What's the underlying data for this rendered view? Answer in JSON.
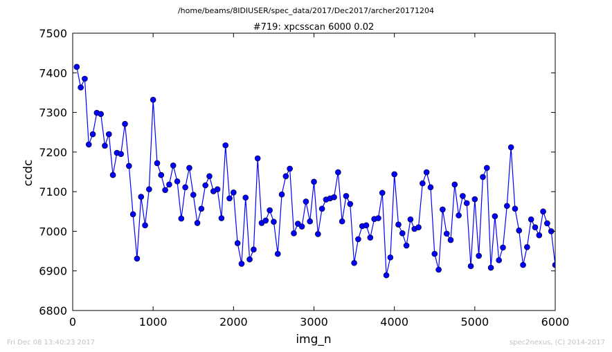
{
  "chart_data": {
    "type": "line",
    "suptitle": "/home/beams/8IDIUSER/spec_data/2017/Dec2017/archer20171204",
    "title": "#719: xpcsscan 6000 0.02",
    "xlabel": "img_n",
    "ylabel": "ccdc",
    "xlim": [
      0,
      6000
    ],
    "ylim": [
      6800,
      7500
    ],
    "xticks": [
      0,
      1000,
      2000,
      3000,
      4000,
      5000,
      6000
    ],
    "yticks": [
      6800,
      6900,
      7000,
      7100,
      7200,
      7300,
      7400,
      7500
    ],
    "grid": false,
    "line_color": "#0000ff",
    "marker": "circle",
    "series": [
      {
        "x": [
          50,
          100,
          150,
          200,
          250,
          300,
          350,
          400,
          450,
          500,
          550,
          600,
          650,
          700,
          750,
          800,
          850,
          900,
          950,
          1000,
          1050,
          1100,
          1150,
          1200,
          1250,
          1300,
          1350,
          1400,
          1450,
          1500,
          1550,
          1600,
          1650,
          1700,
          1750,
          1800,
          1850,
          1900,
          1950,
          2000,
          2050,
          2100,
          2150,
          2200,
          2250,
          2300,
          2350,
          2400,
          2450,
          2500,
          2550,
          2600,
          2650,
          2700,
          2750,
          2800,
          2850,
          2900,
          2950,
          3000,
          3050,
          3100,
          3150,
          3200,
          3250,
          3300,
          3350,
          3400,
          3450,
          3500,
          3550,
          3600,
          3650,
          3700,
          3750,
          3800,
          3850,
          3900,
          3950,
          4000,
          4050,
          4100,
          4150,
          4200,
          4250,
          4300,
          4350,
          4400,
          4450,
          4500,
          4550,
          4600,
          4650,
          4700,
          4750,
          4800,
          4850,
          4900,
          4950,
          5000,
          5050,
          5100,
          5150,
          5200,
          5250,
          5300,
          5350,
          5400,
          5450,
          5500,
          5550,
          5600,
          5650,
          5700,
          5750,
          5800,
          5850,
          5900,
          5950,
          6000
        ],
        "y": [
          7415,
          7363,
          7385,
          7219,
          7245,
          7299,
          7296,
          7216,
          7245,
          7142,
          7198,
          7195,
          7271,
          7165,
          7043,
          6931,
          7087,
          7015,
          7106,
          7332,
          7172,
          7142,
          7104,
          7118,
          7166,
          7126,
          7032,
          7111,
          7160,
          7092,
          7021,
          7057,
          7116,
          7139,
          7101,
          7106,
          7033,
          7217,
          7083,
          7098,
          6970,
          6918,
          7085,
          6929,
          6954,
          7184,
          7021,
          7027,
          7053,
          7024,
          6943,
          7093,
          7139,
          7158,
          6995,
          7019,
          7012,
          7075,
          7025,
          7125,
          6993,
          7057,
          7080,
          7083,
          7086,
          7149,
          7025,
          7089,
          7069,
          6920,
          6980,
          7013,
          7015,
          6984,
          7031,
          7033,
          7097,
          6889,
          6934,
          7144,
          7017,
          6995,
          6964,
          7030,
          7006,
          7010,
          7121,
          7149,
          7111,
          6943,
          6903,
          7055,
          6994,
          6978,
          7118,
          7040,
          7089,
          7071,
          6912,
          7081,
          6938,
          7137,
          7160,
          6908,
          7038,
          6927,
          6959,
          7064,
          7212,
          7057,
          7002,
          6915,
          6960,
          7030,
          7010,
          6990,
          7050,
          7020,
          7000,
          6915
        ]
      }
    ]
  },
  "footer": {
    "left": "Fri Dec 08 13:40:23 2017",
    "right": "spec2nexus, (C) 2014-2017"
  }
}
